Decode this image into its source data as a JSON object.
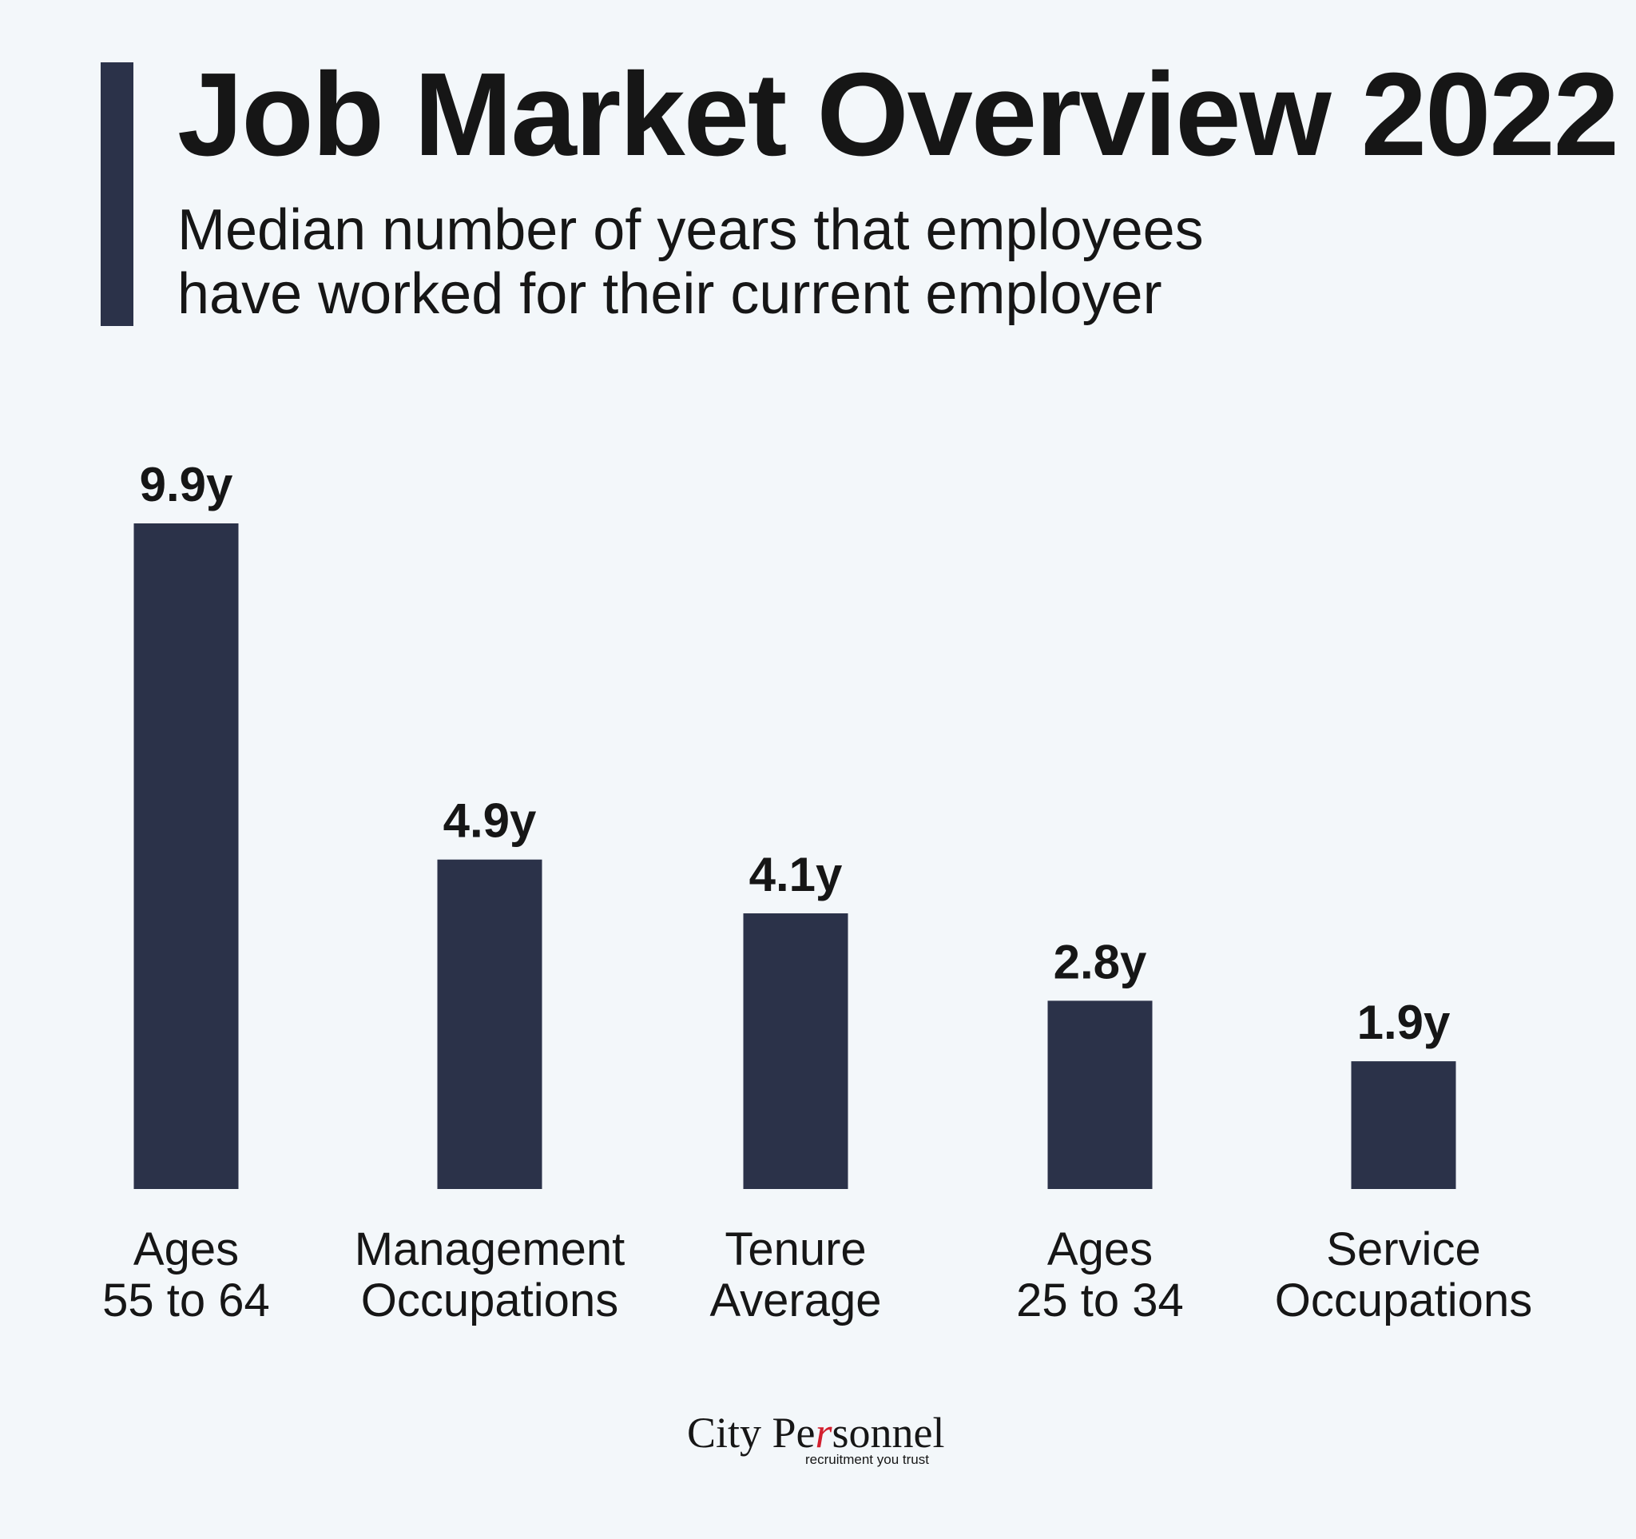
{
  "header": {
    "title": "Job Market Overview 2022",
    "subtitle_line1": "Median number of years that employees",
    "subtitle_line2": "have worked for their current employer"
  },
  "colors": {
    "bar": "#2b3249",
    "accent_bar": "#2b3249",
    "background": "#f3f7fa",
    "text": "#161616",
    "logo_accent": "#d3202f"
  },
  "chart_data": {
    "type": "bar",
    "title": "Job Market Overview 2022",
    "subtitle": "Median number of years that employees have worked for their current employer",
    "unit_suffix": "y",
    "categories": [
      [
        "Ages",
        "55 to 64"
      ],
      [
        "Management",
        "Occupations"
      ],
      [
        "Tenure",
        "Average"
      ],
      [
        "Ages",
        "25 to 34"
      ],
      [
        "Service",
        "Occupations"
      ]
    ],
    "values": [
      9.9,
      4.9,
      4.1,
      2.8,
      1.9
    ],
    "value_labels": [
      "9.9y",
      "4.9y",
      "4.1y",
      "2.8y",
      "1.9y"
    ],
    "ylim": [
      0,
      9.9
    ],
    "grid": false,
    "legend": "none"
  },
  "logo": {
    "name_part1": "City Pe",
    "name_mark": "r",
    "name_part2": "sonnel",
    "tagline": "recruitment you trust"
  }
}
